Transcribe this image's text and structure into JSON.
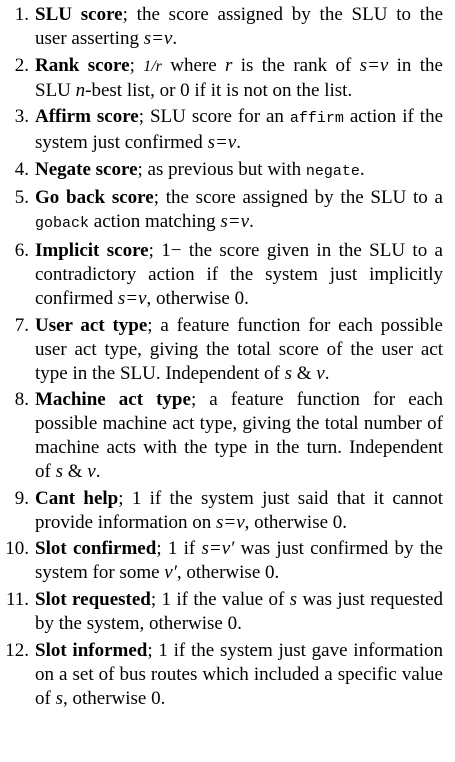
{
  "items": [
    {
      "num": "1.",
      "term": "SLU score",
      "segments": [
        {
          "t": "; the score assigned by the SLU to the user asserting "
        },
        {
          "t": "s=v",
          "m": 1
        },
        {
          "t": "."
        }
      ]
    },
    {
      "num": "2.",
      "term": "Rank score",
      "segments": [
        {
          "t": "; "
        },
        {
          "t": "1/r",
          "m": 1,
          "frac": 1
        },
        {
          "t": " where "
        },
        {
          "t": "r",
          "m": 1
        },
        {
          "t": " is the rank of "
        },
        {
          "t": "s=v",
          "m": 1
        },
        {
          "t": " in the SLU "
        },
        {
          "t": "n",
          "m": 1
        },
        {
          "t": "-best list, or 0 if it is not on the list."
        }
      ]
    },
    {
      "num": "3.",
      "term": "Affirm score",
      "segments": [
        {
          "t": "; SLU score for an "
        },
        {
          "t": "affirm",
          "c": 1
        },
        {
          "t": " action if the system just confirmed "
        },
        {
          "t": "s=v",
          "m": 1
        },
        {
          "t": "."
        }
      ]
    },
    {
      "num": "4.",
      "term": "Negate score",
      "segments": [
        {
          "t": "; as previous but with "
        },
        {
          "t": "negate",
          "c": 1
        },
        {
          "t": "."
        }
      ]
    },
    {
      "num": "5.",
      "term": "Go back score",
      "segments": [
        {
          "t": "; the score assigned by the SLU to a "
        },
        {
          "t": "goback",
          "c": 1
        },
        {
          "t": " action matching "
        },
        {
          "t": "s=v",
          "m": 1
        },
        {
          "t": "."
        }
      ]
    },
    {
      "num": "6.",
      "term": "Implicit score",
      "segments": [
        {
          "t": "; 1− the score given in the SLU to a contradictory action if the system just im­plicitly confirmed "
        },
        {
          "t": "s=v",
          "m": 1
        },
        {
          "t": ", otherwise 0."
        }
      ]
    },
    {
      "num": "7.",
      "term": "User act type",
      "segments": [
        {
          "t": "; a feature function for each pos­sible user act type, giving the total score of the user act type in the SLU. Independent of "
        },
        {
          "t": "s",
          "m": 1
        },
        {
          "t": " & "
        },
        {
          "t": "v",
          "m": 1
        },
        {
          "t": "."
        }
      ]
    },
    {
      "num": "8.",
      "term": "Machine act type",
      "segments": [
        {
          "t": "; a feature function for each possible machine act type, giving the total num­ber of machine acts with the type in the turn. Independent of "
        },
        {
          "t": "s",
          "m": 1
        },
        {
          "t": " & "
        },
        {
          "t": "v",
          "m": 1
        },
        {
          "t": "."
        }
      ]
    },
    {
      "num": "9.",
      "term": "Cant help",
      "segments": [
        {
          "t": "; 1 if the system just said that it can­not provide information on "
        },
        {
          "t": "s=v",
          "m": 1
        },
        {
          "t": ", otherwise 0."
        }
      ]
    },
    {
      "num": "10.",
      "term": "Slot confirmed",
      "segments": [
        {
          "t": "; 1 if "
        },
        {
          "t": "s=v′",
          "m": 1
        },
        {
          "t": " was just confirmed by the system for some "
        },
        {
          "t": "v′",
          "m": 1
        },
        {
          "t": ", otherwise 0."
        }
      ]
    },
    {
      "num": "11.",
      "term": "Slot requested",
      "segments": [
        {
          "t": "; 1 if the value of "
        },
        {
          "t": "s",
          "m": 1
        },
        {
          "t": " was just re­quested by the system, otherwise 0."
        }
      ]
    },
    {
      "num": "12.",
      "term": "Slot informed",
      "segments": [
        {
          "t": "; 1 if the system just gave infor­mation on a set of bus routes which included a specific value of "
        },
        {
          "t": "s",
          "m": 1
        },
        {
          "t": ", otherwise 0."
        }
      ]
    }
  ]
}
